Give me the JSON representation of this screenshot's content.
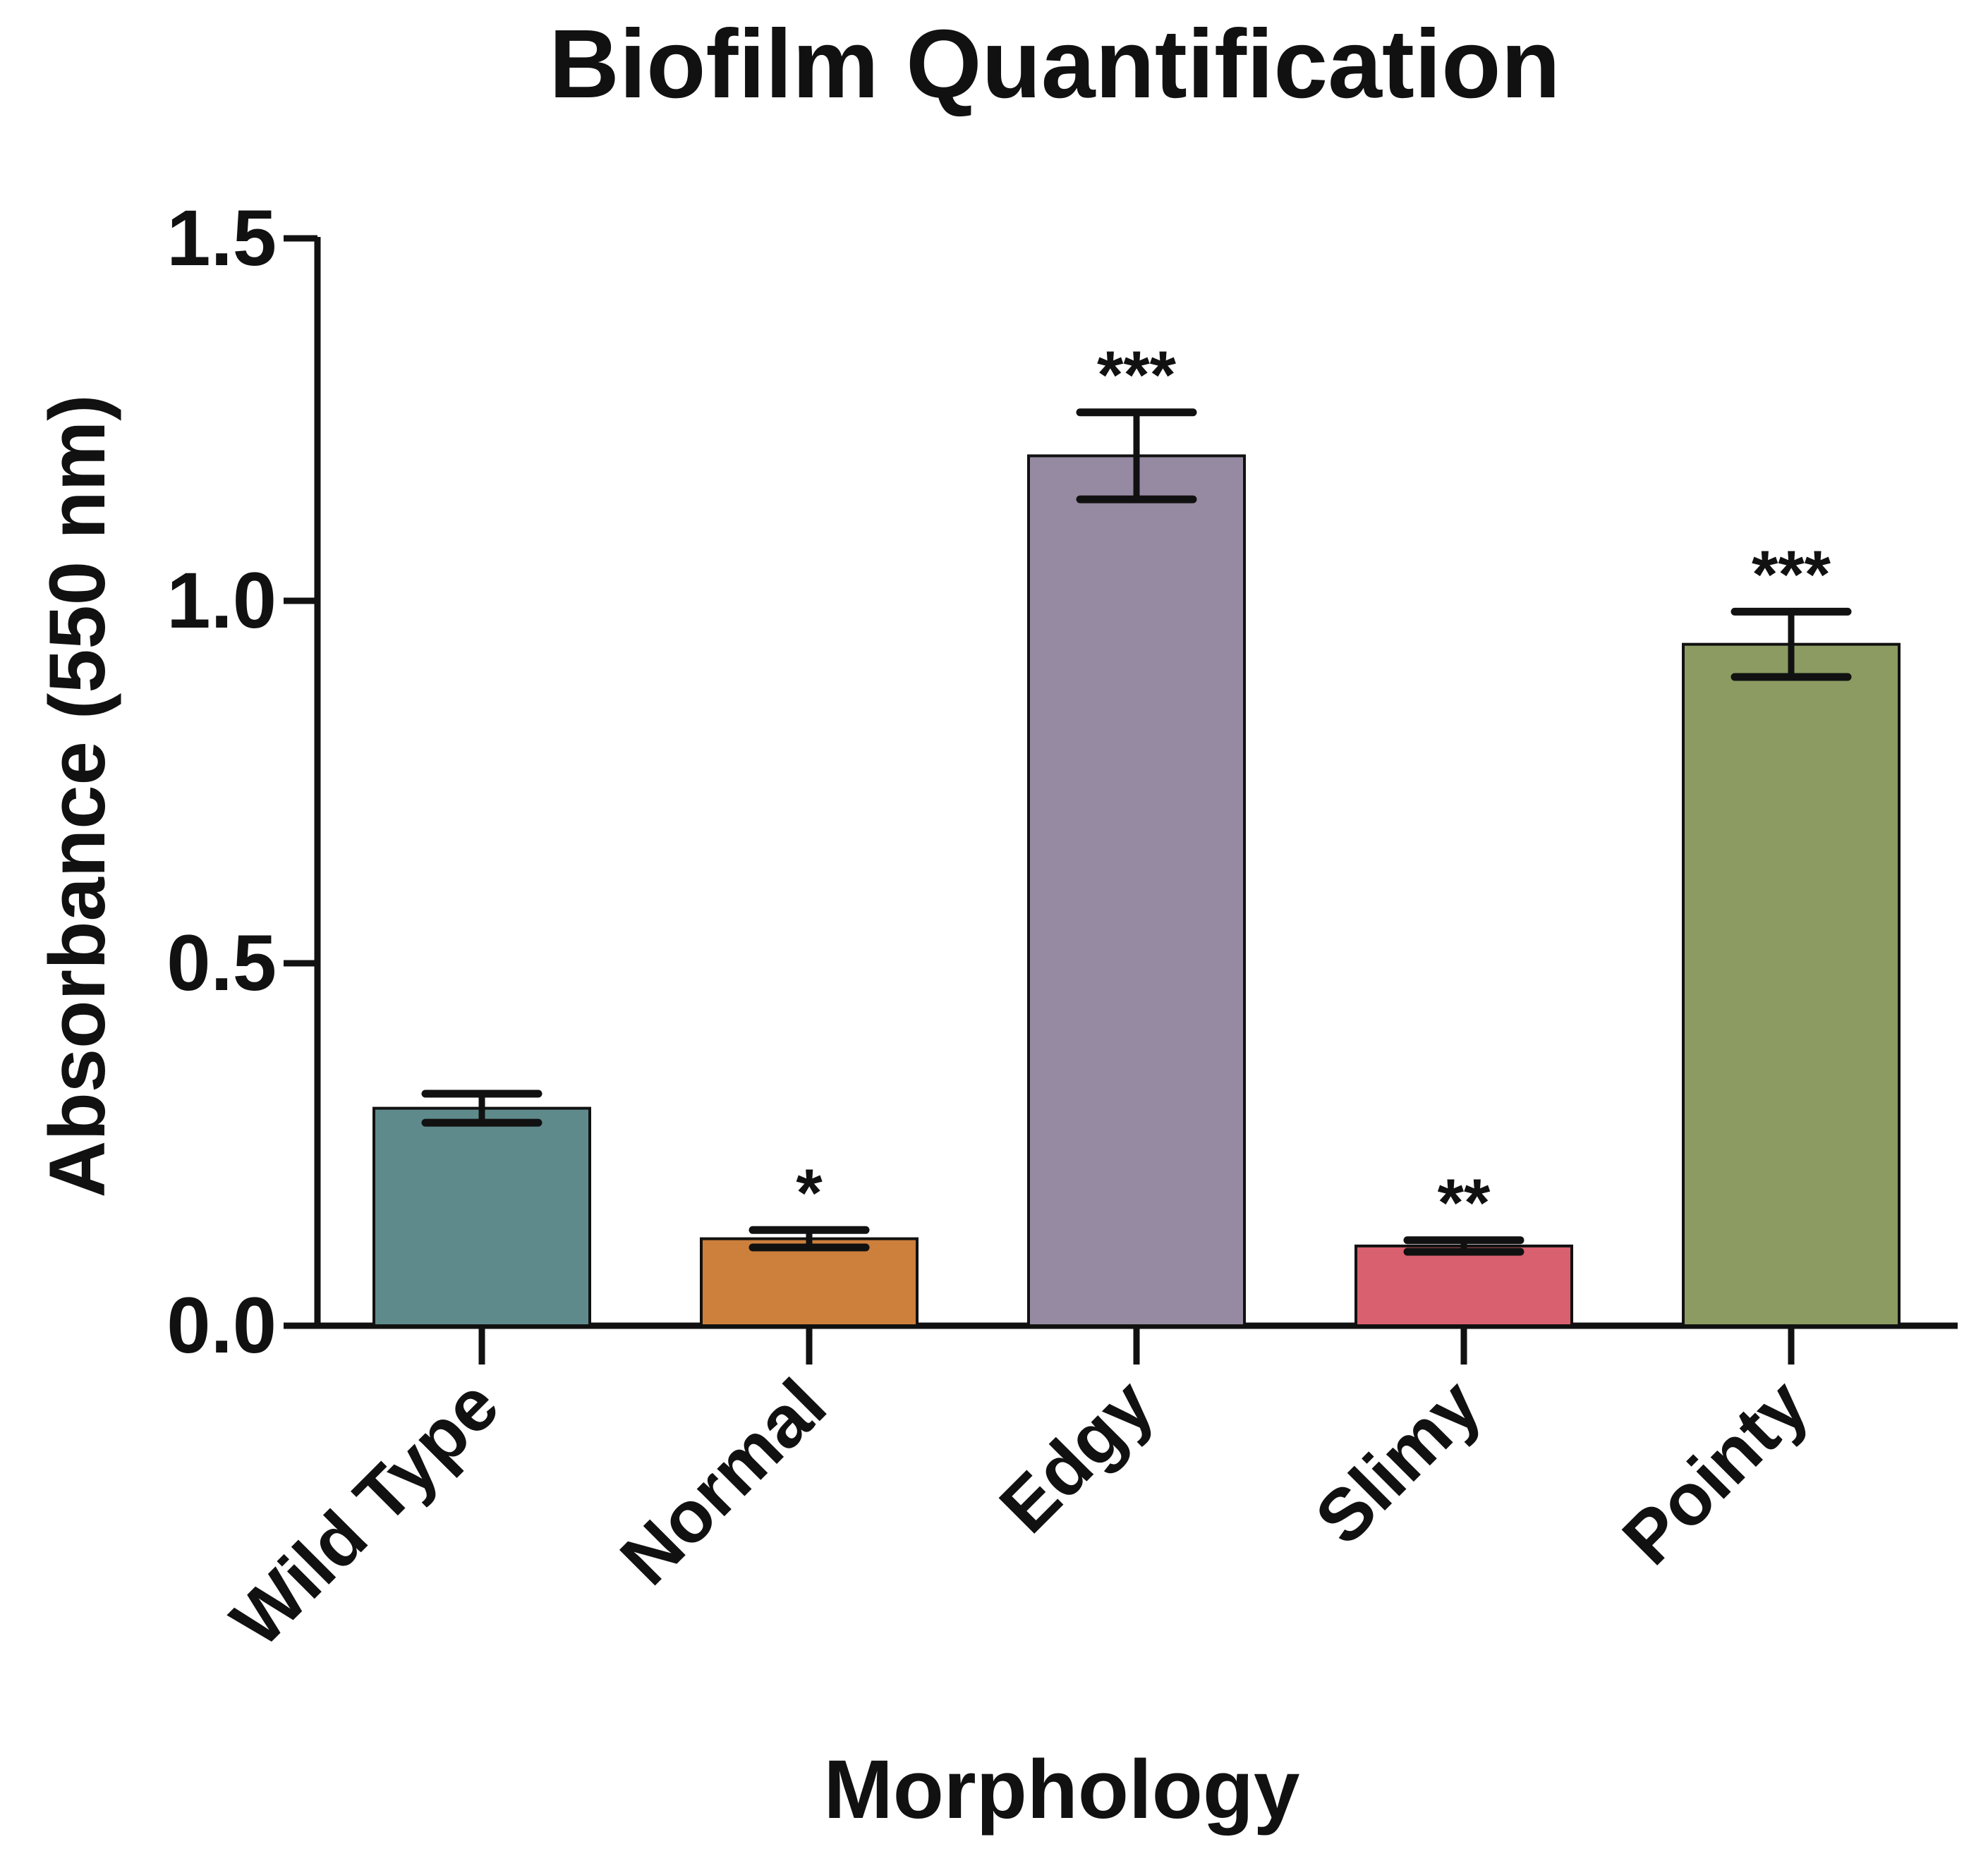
{
  "chart_data": {
    "type": "bar",
    "title": "Biofilm Quantification",
    "xlabel": "Morphology",
    "ylabel": "Absorbance (550 nm)",
    "categories": [
      "Wild Type",
      "Normal",
      "Edgy",
      "Slimy",
      "Pointy"
    ],
    "values": [
      0.3,
      0.12,
      1.2,
      0.11,
      0.94
    ],
    "errors": [
      0.02,
      0.012,
      0.06,
      0.008,
      0.045
    ],
    "annotations": [
      "",
      "*",
      "***",
      "**",
      "***"
    ],
    "colors": [
      "#5f8a8b",
      "#cd7f3c",
      "#968aa2",
      "#d9606e",
      "#8b9b62"
    ],
    "ylim": [
      0,
      1.5
    ],
    "yticks": [
      0.0,
      0.5,
      1.0,
      1.5
    ],
    "ytick_labels": [
      "0.0",
      "0.5",
      "1.0",
      "1.5"
    ],
    "grid": false,
    "legend": "none"
  }
}
